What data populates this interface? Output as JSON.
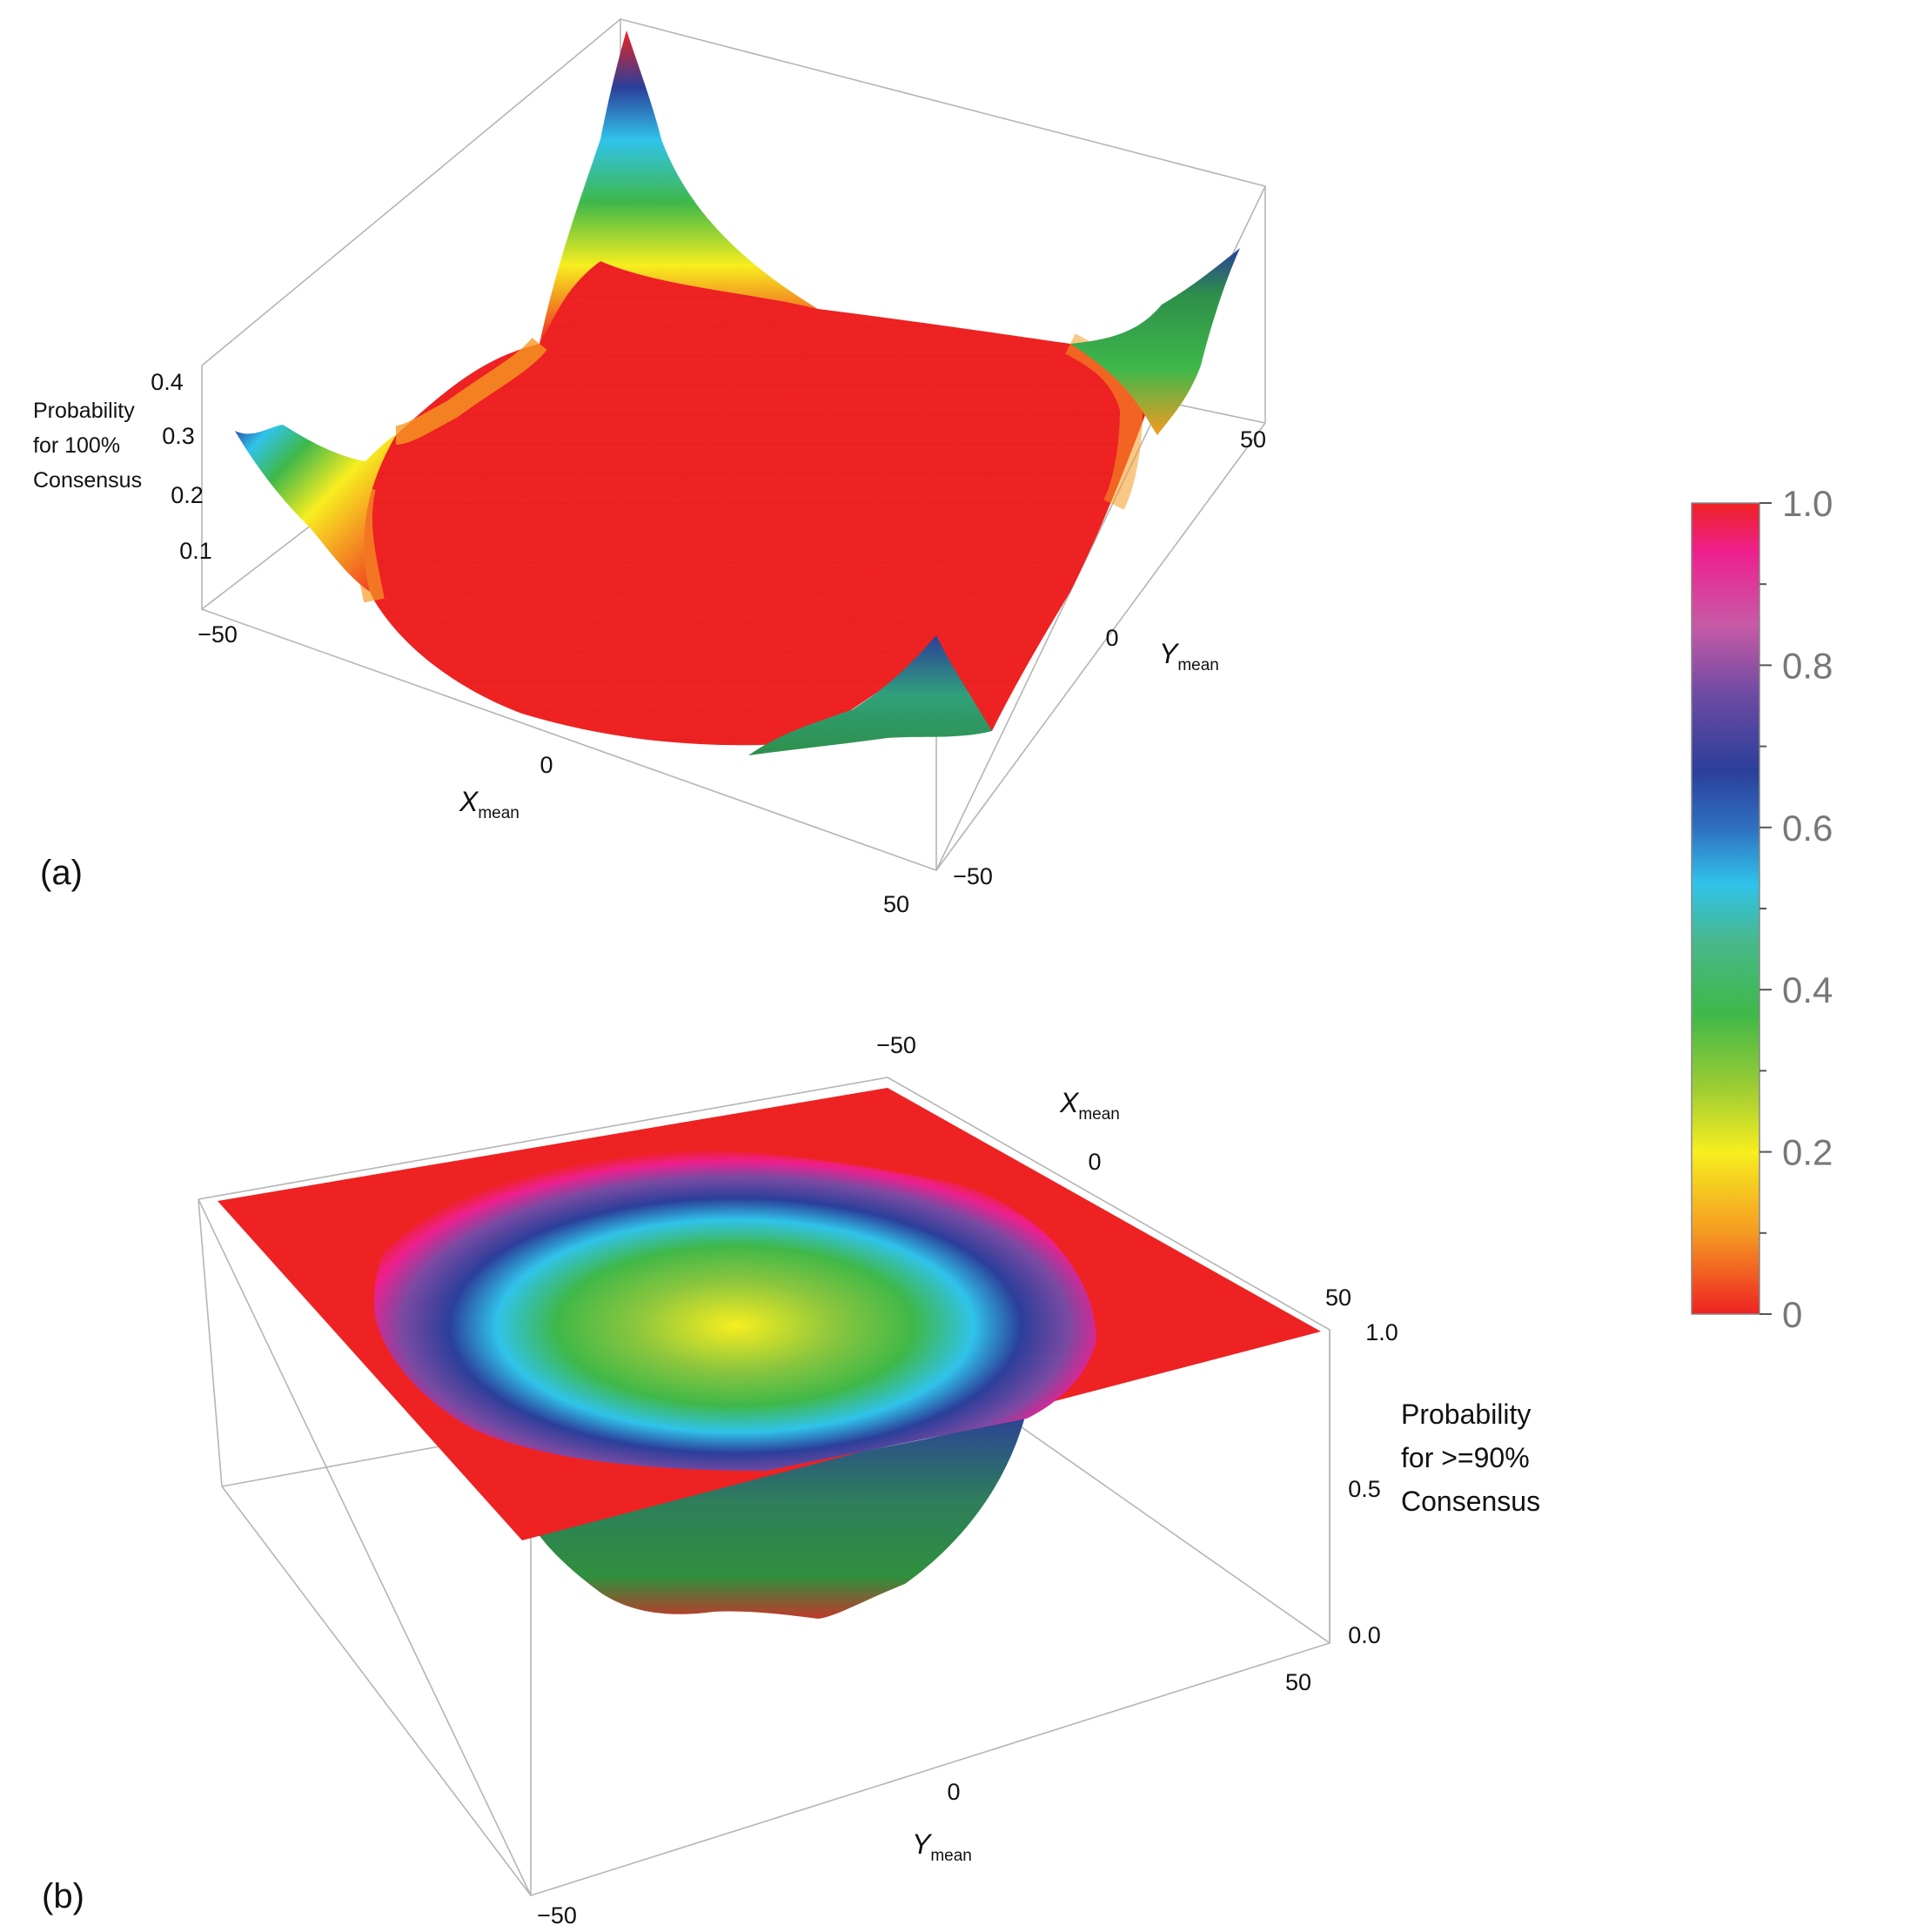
{
  "panels": {
    "a": {
      "label": "(a)",
      "z_label_lines": [
        "Probability",
        "for 100%",
        "Consensus"
      ],
      "x_label": "X",
      "x_label_sub": "mean",
      "y_label": "Y",
      "y_label_sub": "mean",
      "z_ticks": [
        "0.4",
        "0.3",
        "0.2",
        "0.1"
      ],
      "x_ticks": [
        "−50",
        "0",
        "50"
      ],
      "y_ticks": [
        "50",
        "0",
        "−50"
      ]
    },
    "b": {
      "label": "(b)",
      "z_label_lines": [
        "Probability",
        "for >=90%",
        "Consensus"
      ],
      "x_label": "X",
      "x_label_sub": "mean",
      "y_label": "Y",
      "y_label_sub": "mean",
      "z_ticks": [
        "1.0",
        "0.5",
        "0.0"
      ],
      "x_ticks": [
        "−50",
        "0",
        "50"
      ],
      "y_ticks": [
        "50",
        "0",
        "−50"
      ]
    }
  },
  "colorbar": {
    "ticks": [
      "1.0",
      "0.8",
      "0.6",
      "0.4",
      "0.2",
      "0"
    ],
    "stops": [
      "#ee2222",
      "#ee1f8e",
      "#c85aa6",
      "#7a4aa3",
      "#2b3f9a",
      "#2f6fc0",
      "#30c3ea",
      "#48b88c",
      "#3fb849",
      "#bcd82e",
      "#f7ee1f",
      "#f59a22",
      "#ee2222"
    ]
  },
  "chart_data": [
    {
      "type": "surface",
      "panel": "(a)",
      "xlabel": "Xmean",
      "ylabel": "Ymean",
      "zlabel": "Probability for 100% Consensus",
      "xlim": [
        -50,
        50
      ],
      "ylim": [
        -50,
        50
      ],
      "zlim": [
        0,
        0.45
      ],
      "z_ticks": [
        0.1,
        0.2,
        0.3,
        0.4
      ],
      "shape": "near zero over the central region, rising toward the four corners",
      "corner_peaks": [
        {
          "x": -50,
          "y": 50,
          "z": 0.43
        },
        {
          "x": 50,
          "y": 50,
          "z": 0.38
        },
        {
          "x": -50,
          "y": -50,
          "z": 0.33
        },
        {
          "x": 50,
          "y": -50,
          "z": 0.3
        }
      ]
    },
    {
      "type": "surface",
      "panel": "(b)",
      "xlabel": "Xmean",
      "ylabel": "Ymean",
      "zlabel": "Probability for >=90% Consensus",
      "xlim": [
        -50,
        50
      ],
      "ylim": [
        -50,
        50
      ],
      "zlim": [
        0,
        1
      ],
      "z_ticks": [
        0.0,
        0.5,
        1.0
      ],
      "shape": "equal to 1.0 at the borders, dropping to a minimum near 0 at the center (0, 0)",
      "center_value": 0.0,
      "edge_value": 1.0
    }
  ]
}
